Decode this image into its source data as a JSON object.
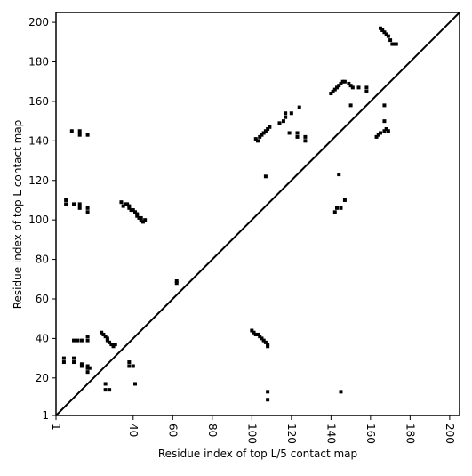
{
  "chart_data": {
    "type": "scatter",
    "xlabel": "Residue index of top L/5 contact map",
    "ylabel": "Residue index of top L contact map",
    "xlim": [
      1,
      205
    ],
    "ylim": [
      1,
      205
    ],
    "xticks": [
      1,
      40,
      60,
      80,
      100,
      120,
      140,
      160,
      180,
      200
    ],
    "yticks": [
      1,
      20,
      40,
      60,
      80,
      100,
      120,
      140,
      160,
      180,
      200
    ],
    "diagonal": true,
    "color": "#000000",
    "x": [
      6,
      6,
      10,
      13,
      13,
      17,
      17,
      9,
      13,
      13,
      17,
      34,
      35,
      36,
      37,
      38,
      38,
      39,
      40,
      41,
      42,
      42,
      43,
      44,
      44,
      45,
      46,
      62,
      62,
      102,
      103,
      104,
      105,
      106,
      107,
      108,
      109,
      107,
      114,
      116,
      117,
      117,
      120,
      119,
      123,
      123,
      124,
      127,
      127,
      140,
      141,
      142,
      143,
      144,
      145,
      146,
      147,
      149,
      150,
      151,
      154,
      158,
      158,
      150,
      165,
      166,
      167,
      168,
      169,
      170,
      171,
      172,
      173,
      5,
      5,
      10,
      10,
      10,
      12,
      14,
      14,
      14,
      17,
      17,
      17,
      18,
      17,
      17,
      24,
      25,
      26,
      27,
      27,
      28,
      29,
      30,
      31,
      30,
      26,
      26,
      28,
      38,
      38,
      40,
      41,
      100,
      101,
      102,
      103,
      104,
      105,
      106,
      107,
      108,
      108,
      108,
      108,
      142,
      143,
      145,
      147,
      144,
      145,
      163,
      164,
      165,
      167,
      168,
      167,
      167,
      169
    ],
    "y": [
      108,
      110,
      108,
      108,
      106,
      106,
      104,
      145,
      145,
      143,
      143,
      109,
      107,
      108,
      108,
      107,
      106,
      105,
      105,
      104,
      103,
      102,
      101,
      101,
      100,
      99,
      100,
      68,
      69,
      141,
      140,
      142,
      143,
      144,
      145,
      146,
      147,
      122,
      149,
      150,
      152,
      154,
      154,
      144,
      144,
      142,
      157,
      142,
      140,
      164,
      165,
      166,
      167,
      168,
      169,
      170,
      170,
      169,
      168,
      167,
      167,
      167,
      165,
      158,
      197,
      196,
      195,
      194,
      193,
      191,
      189,
      189,
      189,
      30,
      28,
      30,
      28,
      39,
      39,
      39,
      27,
      26,
      25,
      23,
      26,
      25,
      39,
      41,
      43,
      42,
      41,
      40,
      39,
      38,
      37,
      37,
      37,
      36,
      17,
      14,
      14,
      28,
      26,
      26,
      17,
      44,
      43,
      42,
      42,
      41,
      40,
      39,
      38,
      37,
      36,
      13,
      9,
      104,
      106,
      106,
      110,
      123,
      13,
      142,
      143,
      144,
      145,
      146,
      150,
      158,
      145
    ]
  }
}
